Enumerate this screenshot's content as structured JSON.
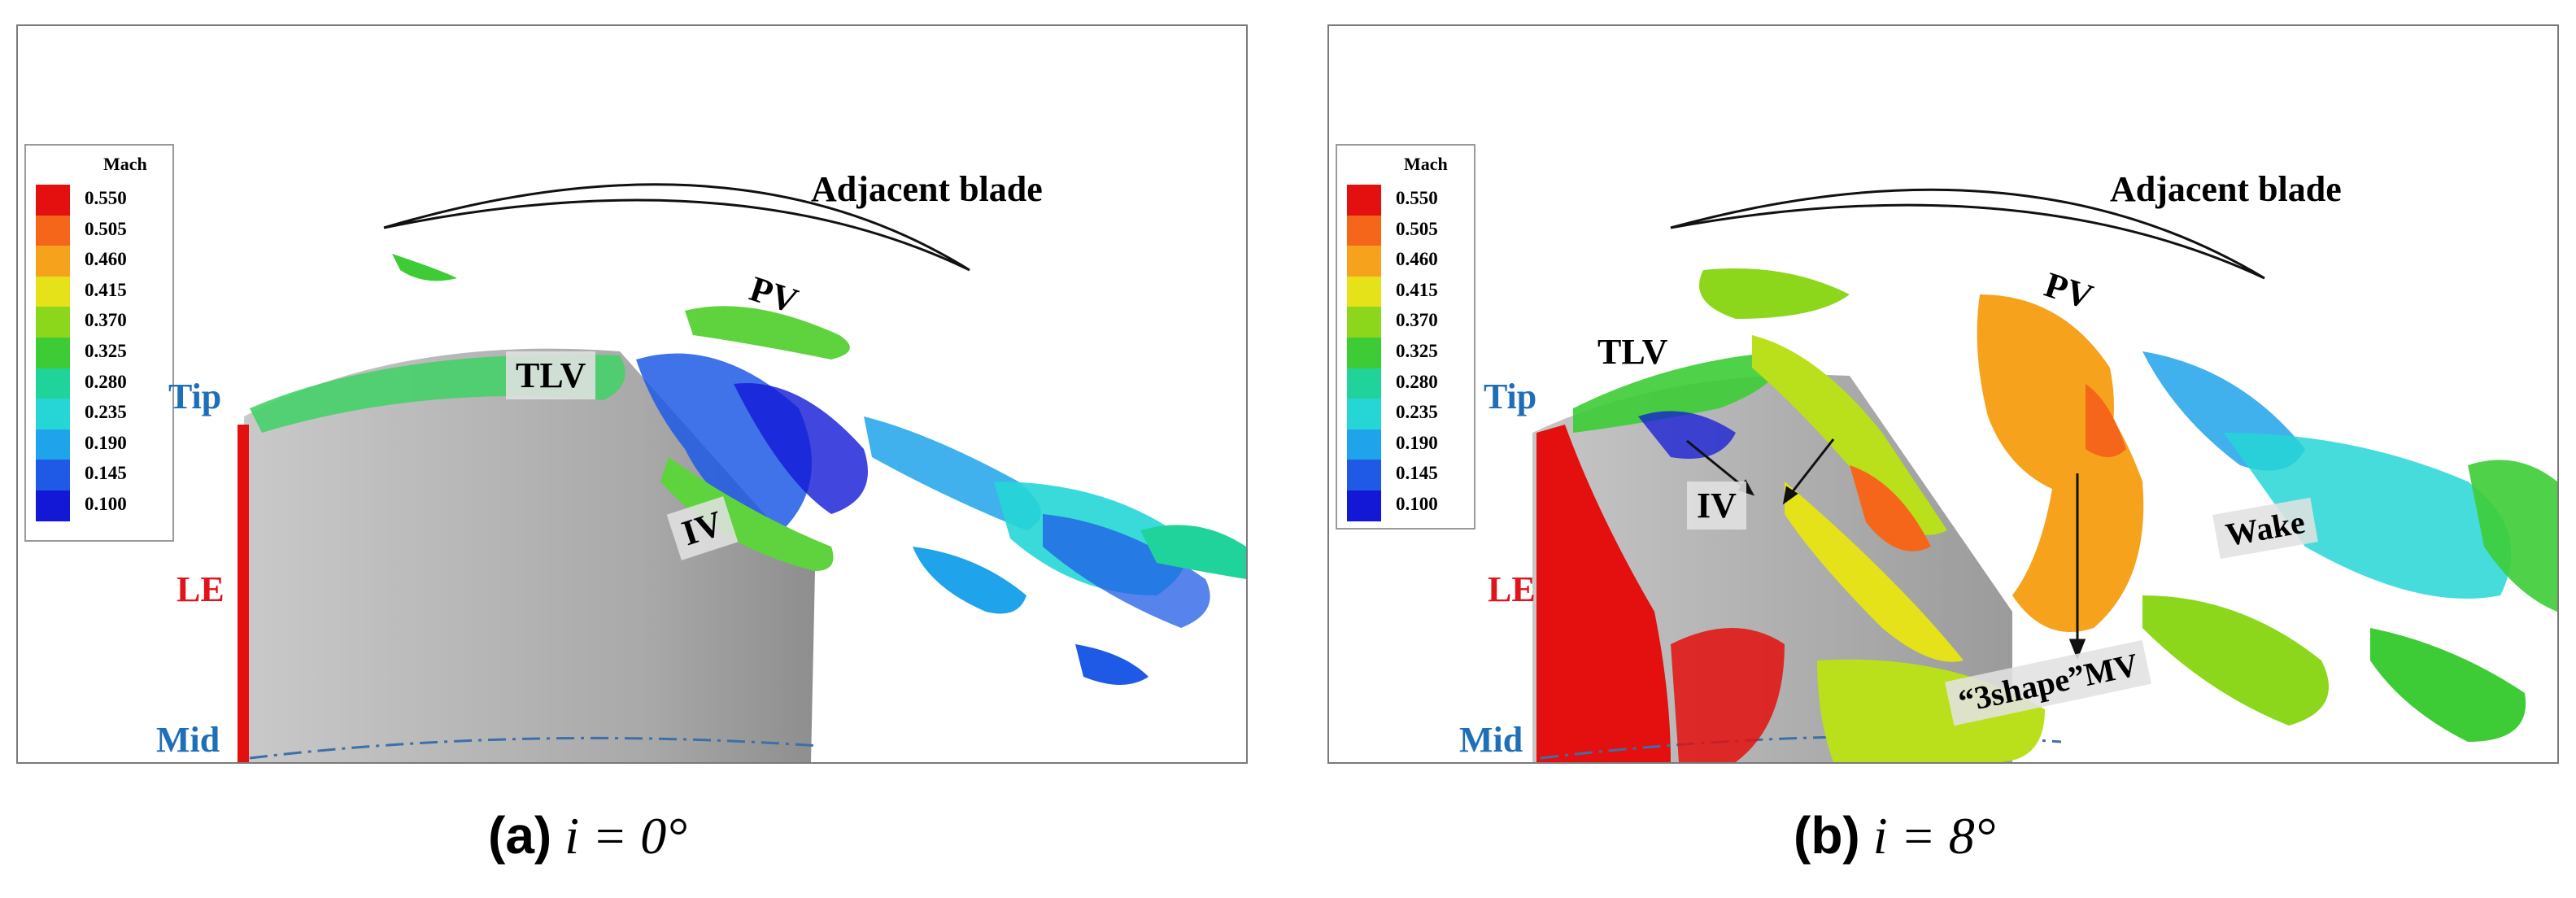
{
  "panels": [
    {
      "id": "a",
      "legend_title": "Mach",
      "labels": {
        "adjacent_blade": "Adjacent blade",
        "pv": "PV",
        "tlv": "TLV",
        "iv": "IV",
        "tip": "Tip",
        "le": "LE",
        "mid": "Mid"
      },
      "caption": {
        "letter": "(a)",
        "formula": "i = 0°"
      }
    },
    {
      "id": "b",
      "legend_title": "Mach",
      "labels": {
        "adjacent_blade": "Adjacent blade",
        "pv": "PV",
        "tlv": "TLV",
        "iv": "IV",
        "tip": "Tip",
        "le": "LE",
        "mid": "Mid",
        "wake": "Wake",
        "mv": "“3shape”MV"
      },
      "caption": {
        "letter": "(b)",
        "formula": "i = 8°"
      }
    }
  ],
  "legend": {
    "levels": [
      "0.550",
      "0.505",
      "0.460",
      "0.415",
      "0.370",
      "0.325",
      "0.280",
      "0.235",
      "0.190",
      "0.145",
      "0.100"
    ],
    "colors": [
      "#e3100f",
      "#f5661a",
      "#f7a21c",
      "#e6e21a",
      "#8cd61c",
      "#3dcc36",
      "#20d39a",
      "#26d6d6",
      "#1fa3ea",
      "#1f5ae6",
      "#1218d6"
    ]
  }
}
